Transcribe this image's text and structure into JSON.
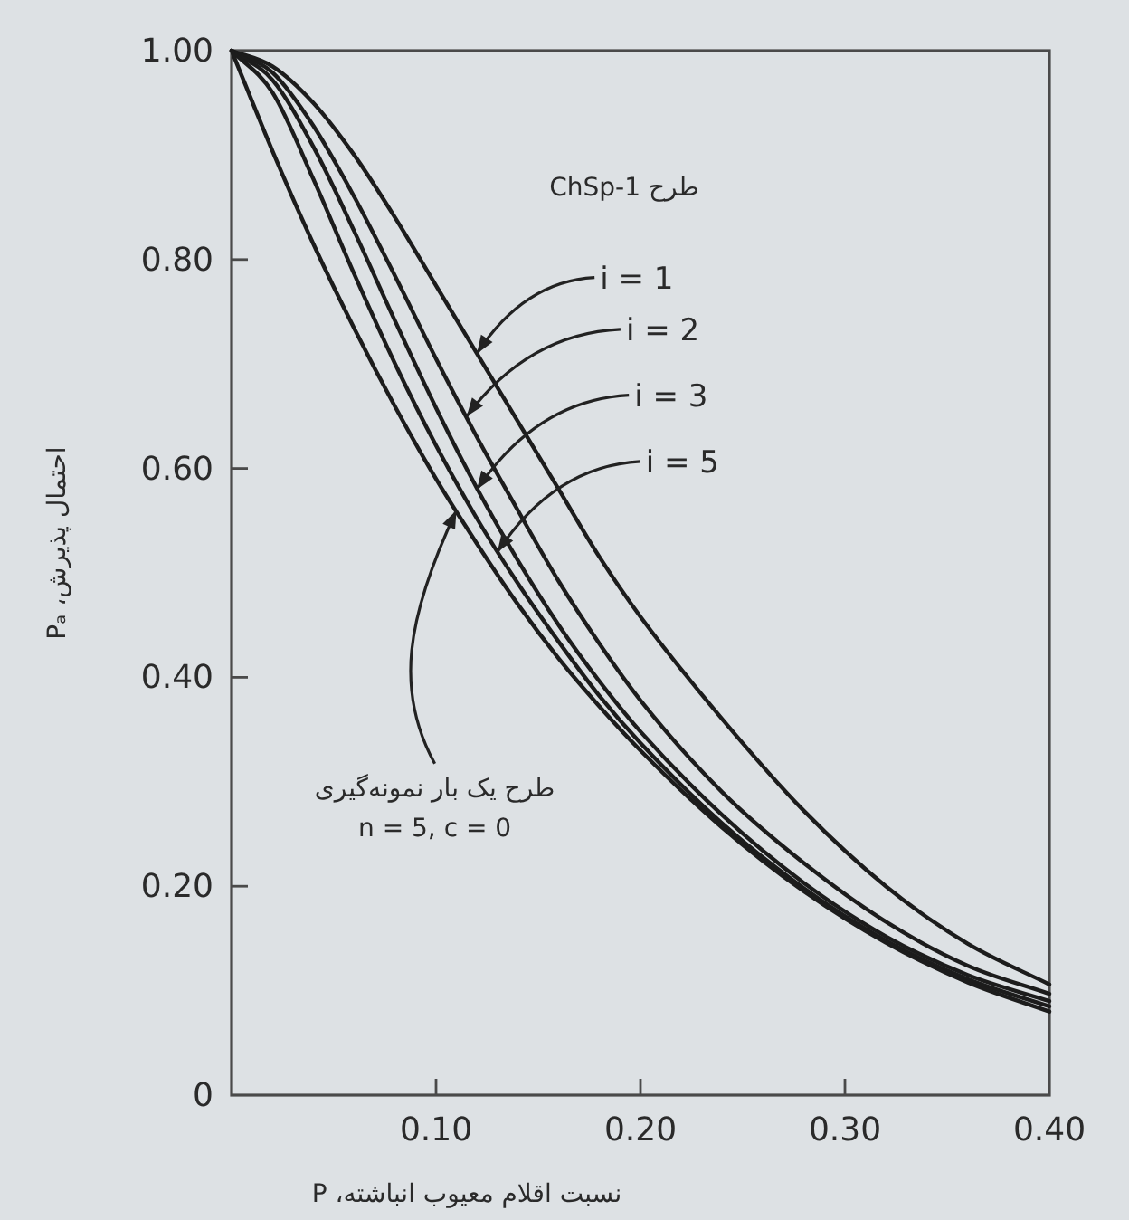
{
  "chart_data": {
    "type": "line",
    "xlabel": "نسبت اقلام معیوب انباشته، P",
    "ylabel": "احتمال پذیرش، Pₐ",
    "x": [
      0,
      0.02,
      0.04,
      0.06,
      0.08,
      0.1,
      0.12,
      0.14,
      0.16,
      0.18,
      0.2,
      0.24,
      0.28,
      0.32,
      0.36,
      0.4
    ],
    "series": [
      {
        "color": "#1c1c1c",
        "values": [
          1,
          0.985,
          0.95,
          0.9,
          0.84,
          0.775,
          0.71,
          0.645,
          0.58,
          0.515,
          0.458,
          0.36,
          0.272,
          0.2,
          0.145,
          0.106
        ]
      },
      {
        "color": "#1c1c1c",
        "values": [
          1,
          0.979,
          0.928,
          0.86,
          0.784,
          0.705,
          0.63,
          0.56,
          0.492,
          0.432,
          0.378,
          0.29,
          0.222,
          0.166,
          0.124,
          0.097
        ]
      },
      {
        "color": "#1c1c1c",
        "values": [
          1,
          0.972,
          0.908,
          0.827,
          0.741,
          0.658,
          0.581,
          0.512,
          0.45,
          0.396,
          0.348,
          0.268,
          0.203,
          0.152,
          0.115,
          0.09
        ]
      },
      {
        "color": "#1c1c1c",
        "values": [
          1,
          0.96,
          0.877,
          0.786,
          0.7,
          0.622,
          0.552,
          0.49,
          0.434,
          0.382,
          0.337,
          0.26,
          0.198,
          0.148,
          0.111,
          0.085
        ]
      },
      {
        "color": "#1c1c1c",
        "values": [
          1,
          0.904,
          0.815,
          0.734,
          0.659,
          0.59,
          0.528,
          0.47,
          0.418,
          0.372,
          0.33,
          0.256,
          0.195,
          0.146,
          0.108,
          0.08
        ]
      }
    ],
    "xlim": [
      0,
      0.4
    ],
    "ylim": [
      0,
      1
    ],
    "xticks": [
      {
        "value": 0.1,
        "label": "0.10"
      },
      {
        "value": 0.2,
        "label": "0.20"
      },
      {
        "value": 0.3,
        "label": "0.30"
      },
      {
        "value": 0.4,
        "label": "0.40"
      }
    ],
    "yticks": [
      0,
      {
        "value": 0.2,
        "label": "0.20"
      },
      {
        "value": 0.4,
        "label": "0.40"
      },
      {
        "value": 0.6,
        "label": "0.60"
      },
      {
        "value": 0.8,
        "label": "0.80"
      },
      {
        "value": 1,
        "label": "1.00"
      }
    ],
    "annotations": [
      "طرح ChSp-1",
      {
        "text": "i = 1",
        "x": 0.12,
        "y": 0.71
      },
      {
        "text": "i = 2",
        "x": 0.115,
        "y": 0.65
      },
      {
        "text": "i = 3",
        "x": 0.12,
        "y": 0.58
      },
      {
        "text": "i = 5",
        "x": 0.13,
        "y": 0.52
      },
      {
        "text": "طرح یک بار نمونه‌گیری\nn = 5, c = 0",
        "x": 0.11,
        "y": 0.56
      }
    ],
    "line_style": "solid"
  }
}
